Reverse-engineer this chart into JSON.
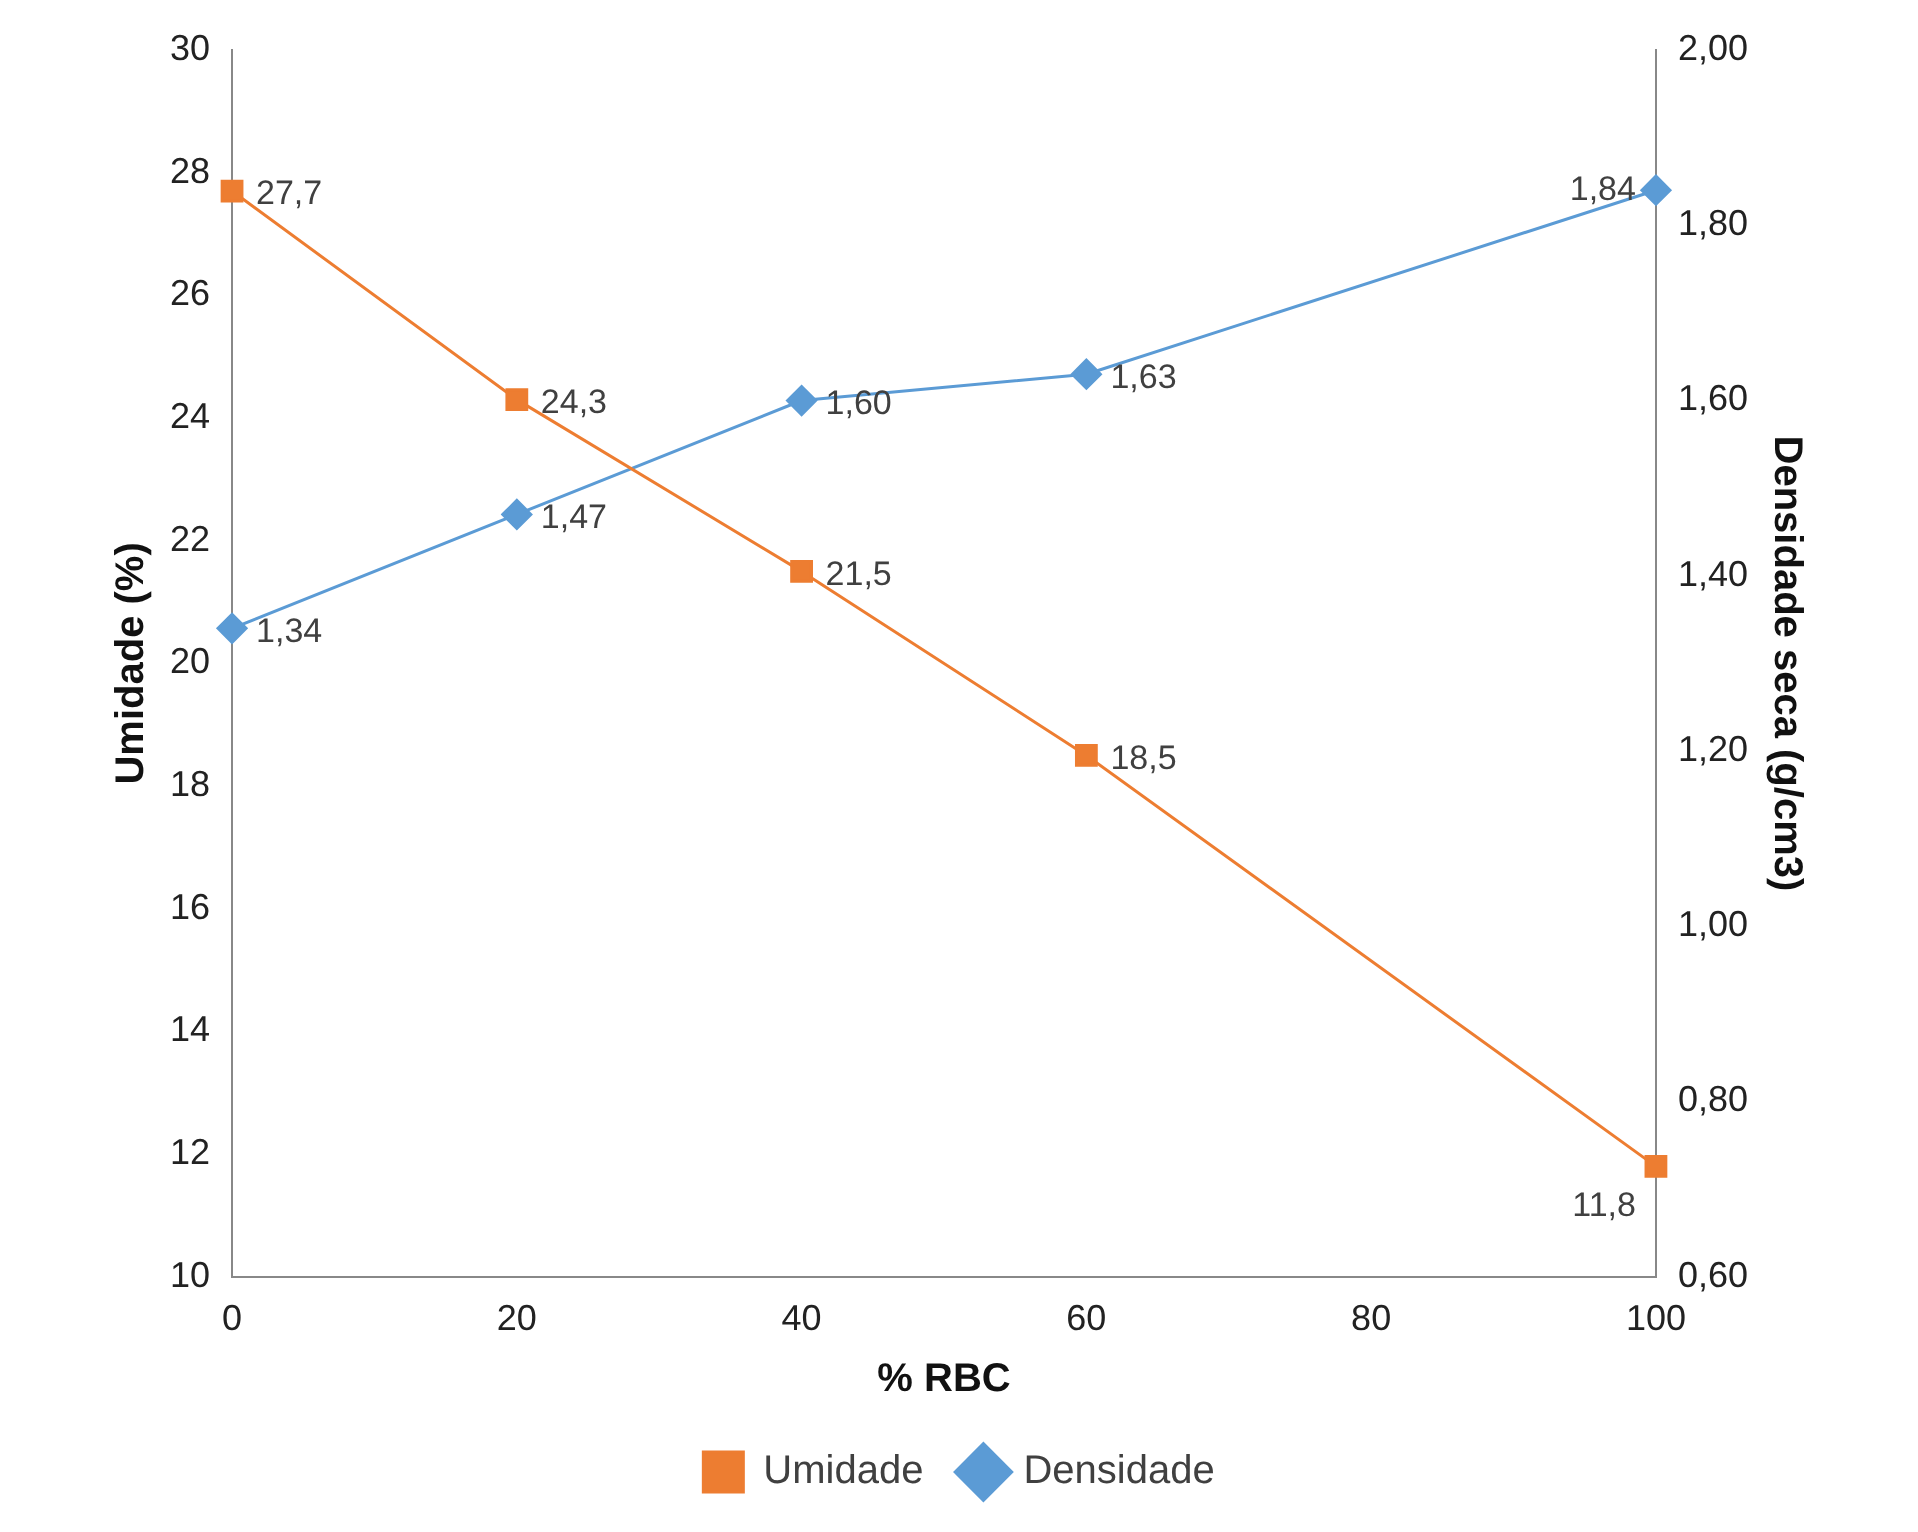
{
  "chart_data": {
    "type": "line",
    "xlabel": "% RBC",
    "ylabel": "Umidade (%)",
    "y2label": "Densidade seca (g/cm3)",
    "x": [
      0,
      20,
      40,
      60,
      100
    ],
    "series": [
      {
        "name": "Umidade",
        "color": "#ed7d31",
        "marker": "square",
        "values": [
          27.7,
          24.3,
          21.5,
          18.5,
          11.8
        ],
        "value_labels": [
          "27,7",
          "24,3",
          "21,5",
          "18,5",
          "11,8"
        ]
      },
      {
        "name": "Densidade",
        "color": "#5b9bd5",
        "marker": "diamond",
        "axis": "y2",
        "values": [
          1.34,
          1.47,
          1.6,
          1.63,
          1.84
        ],
        "value_labels": [
          "1,34",
          "1,47",
          "1,60",
          "1,63",
          "1,84"
        ]
      }
    ],
    "xlim": [
      0,
      100
    ],
    "xticks": [
      0,
      20,
      40,
      60,
      80,
      100
    ],
    "ylim": [
      10,
      30
    ],
    "yticks": [
      10,
      12,
      14,
      16,
      18,
      20,
      22,
      24,
      26,
      28,
      30
    ],
    "y2lim": [
      0.6,
      2.0
    ],
    "y2ticks": [
      {
        "value": 0.6,
        "label": "0,60"
      },
      {
        "value": 0.8,
        "label": "0,80"
      },
      {
        "value": 1.0,
        "label": "1,00"
      },
      {
        "value": 1.2,
        "label": "1,20"
      },
      {
        "value": 1.4,
        "label": "1,40"
      },
      {
        "value": 1.6,
        "label": "1,60"
      },
      {
        "value": 1.8,
        "label": "1,80"
      },
      {
        "value": 2.0,
        "label": "2,00"
      }
    ],
    "grid": false,
    "legend": "bottom",
    "line_style": "solid"
  }
}
